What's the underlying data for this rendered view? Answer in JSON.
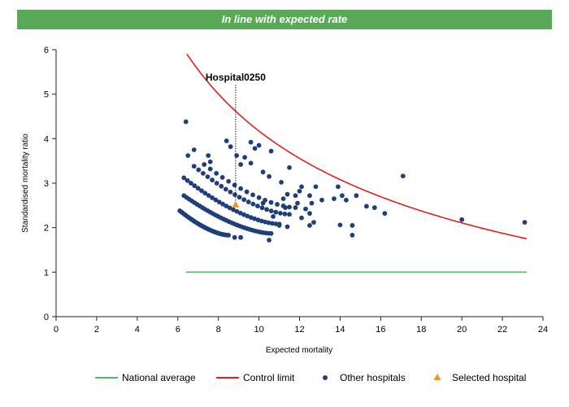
{
  "banner": "In line with expected rate",
  "chart_data": {
    "type": "scatter",
    "xlabel": "Expected mortality",
    "ylabel": "Standardised mortality ratio",
    "xlim": [
      0,
      24
    ],
    "ylim": [
      0,
      6
    ],
    "x_ticks": [
      0,
      2,
      4,
      6,
      8,
      10,
      12,
      14,
      16,
      18,
      20,
      22,
      24
    ],
    "y_ticks": [
      0,
      1,
      2,
      3,
      4,
      5,
      6
    ],
    "grid": false,
    "legend_position": "bottom",
    "legend": [
      {
        "name": "National average",
        "kind": "line",
        "color": "#5cb85c"
      },
      {
        "name": "Control limit",
        "kind": "line",
        "color": "#e0201b"
      },
      {
        "name": "Other hospitals",
        "kind": "dot",
        "color": "#1f3f7a"
      },
      {
        "name": "Selected hospital",
        "kind": "triangle",
        "color": "#f0961e"
      }
    ],
    "national_average": {
      "y": 1,
      "x_range": [
        6.4,
        23.2
      ]
    },
    "control_limit": {
      "x_start": 6.45,
      "x_end": 23.2,
      "y_at_start": 5.9,
      "y_at_end": 1.75
    },
    "annotation": {
      "label": "Hospital0250",
      "x": 8.85,
      "y": 2.52
    },
    "selected_hospital": {
      "x": 8.85,
      "y": 2.52
    },
    "bands": [
      {
        "x_start": 6.1,
        "x_end": 8.5,
        "y_start": 2.38,
        "y_end": 1.83,
        "count": 34
      },
      {
        "x_start": 6.3,
        "x_end": 10.6,
        "y_start": 2.72,
        "y_end": 1.87,
        "count": 34
      },
      {
        "x_start": 6.3,
        "x_end": 11.0,
        "y_start": 3.12,
        "y_end": 2.08,
        "count": 28
      },
      {
        "x_start": 6.8,
        "x_end": 11.5,
        "y_start": 3.38,
        "y_end": 2.3,
        "count": 22
      },
      {
        "x_start": 7.3,
        "x_end": 11.8,
        "y_start": 3.42,
        "y_end": 2.45,
        "count": 16
      }
    ],
    "scatter_points": [
      [
        6.4,
        4.38
      ],
      [
        6.5,
        3.62
      ],
      [
        6.8,
        3.75
      ],
      [
        7.5,
        3.62
      ],
      [
        7.6,
        3.48
      ],
      [
        8.4,
        3.95
      ],
      [
        8.6,
        3.82
      ],
      [
        8.9,
        3.62
      ],
      [
        9.1,
        3.42
      ],
      [
        9.3,
        3.58
      ],
      [
        9.6,
        3.92
      ],
      [
        9.8,
        3.78
      ],
      [
        10.0,
        3.85
      ],
      [
        10.6,
        3.72
      ],
      [
        9.6,
        3.45
      ],
      [
        10.2,
        3.25
      ],
      [
        10.5,
        3.15
      ],
      [
        11.1,
        3.02
      ],
      [
        11.5,
        3.35
      ],
      [
        11.4,
        2.75
      ],
      [
        11.2,
        2.65
      ],
      [
        11.8,
        2.72
      ],
      [
        12.0,
        2.82
      ],
      [
        12.1,
        2.92
      ],
      [
        12.5,
        2.72
      ],
      [
        12.3,
        2.42
      ],
      [
        12.6,
        2.55
      ],
      [
        12.8,
        2.92
      ],
      [
        13.1,
        2.62
      ],
      [
        11.9,
        2.55
      ],
      [
        11.3,
        2.45
      ],
      [
        10.7,
        2.25
      ],
      [
        11.0,
        2.05
      ],
      [
        11.4,
        2.02
      ],
      [
        12.1,
        2.22
      ],
      [
        12.5,
        2.32
      ],
      [
        12.7,
        2.12
      ],
      [
        12.5,
        2.05
      ],
      [
        13.7,
        2.65
      ],
      [
        14.1,
        2.72
      ],
      [
        14.3,
        2.62
      ],
      [
        14.8,
        2.72
      ],
      [
        14.0,
        2.06
      ],
      [
        14.6,
        2.05
      ],
      [
        14.6,
        1.83
      ],
      [
        13.9,
        2.92
      ],
      [
        15.3,
        2.48
      ],
      [
        15.7,
        2.45
      ],
      [
        16.2,
        2.32
      ],
      [
        17.1,
        3.16
      ],
      [
        20.0,
        2.18
      ],
      [
        23.1,
        2.12
      ],
      [
        10.5,
        1.72
      ],
      [
        9.1,
        1.78
      ],
      [
        8.8,
        1.78
      ],
      [
        10.2,
        2.55
      ]
    ]
  }
}
